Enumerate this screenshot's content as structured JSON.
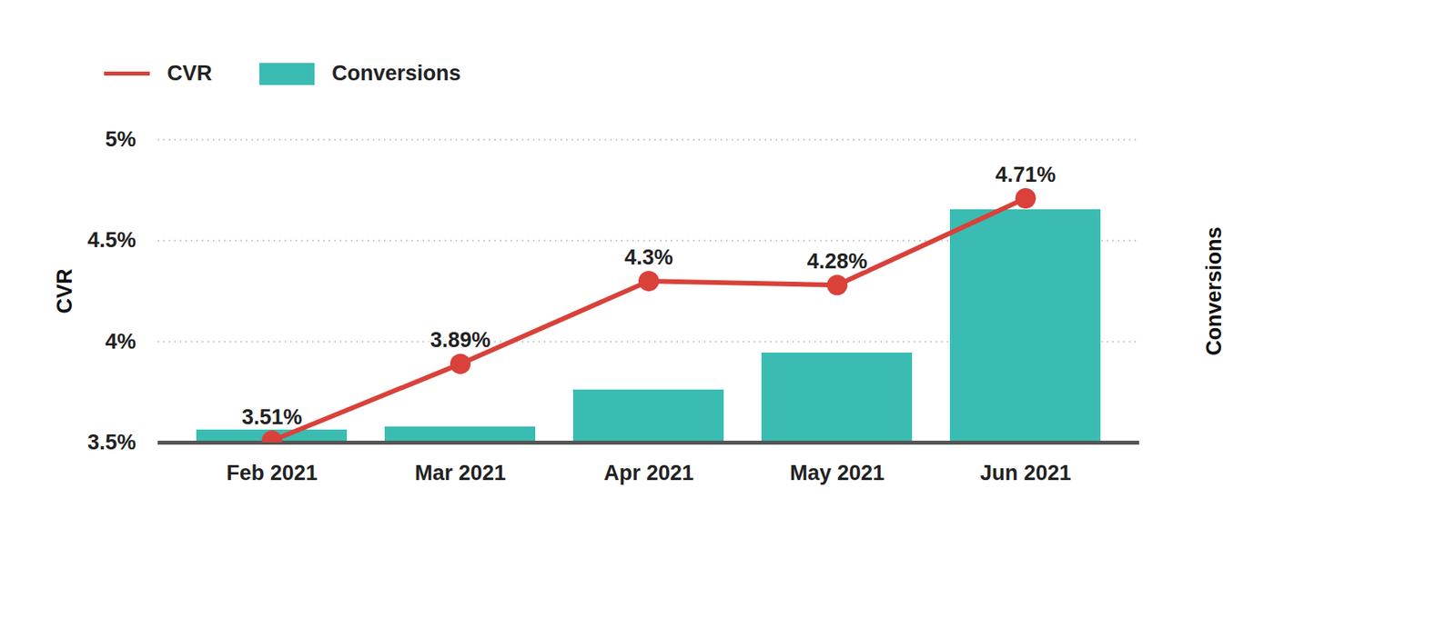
{
  "chart_data": {
    "type": "combo",
    "categories": [
      "Feb 2021",
      "Mar 2021",
      "Apr 2021",
      "May 2021",
      "Jun 2021"
    ],
    "series": [
      {
        "name": "CVR",
        "type": "line",
        "color": "#d9413a",
        "marker": "circle",
        "values": [
          3.51,
          3.89,
          4.3,
          4.28,
          4.71
        ],
        "value_labels": [
          "3.51%",
          "3.89%",
          "4.3%",
          "4.28%",
          "4.71%"
        ]
      },
      {
        "name": "Conversions",
        "type": "bar",
        "color": "#3bbcb2",
        "axis": "y2",
        "values": [
          4.2,
          5.2,
          17.4,
          29.6,
          76.9
        ]
      }
    ],
    "ylabel": "CVR",
    "y2label": "Conversions",
    "ylim": [
      3.5,
      5
    ],
    "yticks": [
      {
        "value": 3.5,
        "label": "3.5%"
      },
      {
        "value": 4,
        "label": "4%"
      },
      {
        "value": 4.5,
        "label": "4.5%"
      },
      {
        "value": 5,
        "label": "5%"
      }
    ],
    "y2lim": [
      0,
      100
    ],
    "grid": true,
    "legend": "top-left",
    "data_labels": true
  }
}
